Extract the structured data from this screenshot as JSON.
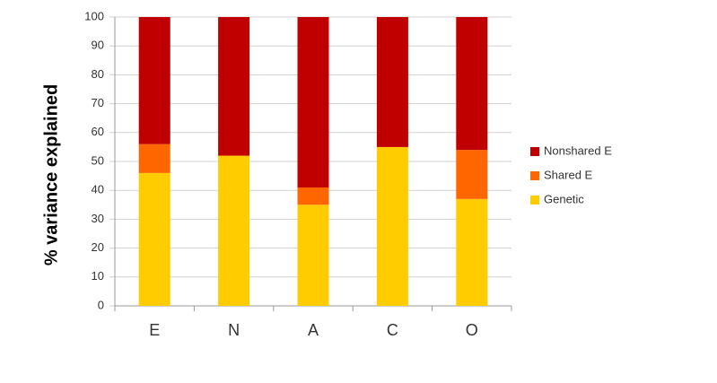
{
  "chart_data": {
    "type": "stacked_bar",
    "y_label": "% variance explained",
    "categories": [
      "E",
      "N",
      "A",
      "C",
      "O"
    ],
    "series": [
      {
        "name": "Genetic",
        "color": "#ffcc00",
        "values": [
          46,
          52,
          35,
          55,
          37
        ]
      },
      {
        "name": "Shared E",
        "color": "#ff6600",
        "values": [
          10,
          0,
          6,
          0,
          17
        ]
      },
      {
        "name": "Nonshared E",
        "color": "#c00000",
        "values": [
          44,
          48,
          59,
          45,
          46
        ]
      }
    ],
    "ylim": [
      0,
      100
    ],
    "yticks": [
      0,
      10,
      20,
      30,
      40,
      50,
      60,
      70,
      80,
      90,
      100
    ],
    "grid": true,
    "legend": "right"
  }
}
